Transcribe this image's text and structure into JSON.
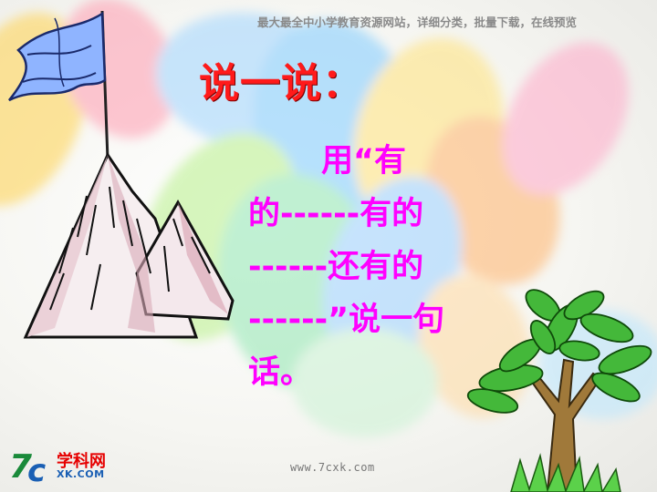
{
  "header": {
    "note": "最大最全中小学教育资源网站，详细分类，批量下载，在线预览"
  },
  "title": "说一说：",
  "body": {
    "lines": [
      "用“有",
      "的------有的",
      "------还有的",
      "------”说一句",
      "话。"
    ]
  },
  "footer": {
    "url": "www.7cxk.com"
  },
  "logo": {
    "mark": "7c",
    "cn": "学科网",
    "en": "XK.COM"
  },
  "icons": {
    "mountain": "mountain-flag-icon",
    "tree": "tree-icon"
  },
  "colors": {
    "title": "#ff1a1a",
    "body": "#ff00ff",
    "header_note": "#8a8a8a",
    "logo_red": "#e60000",
    "logo_blue": "#1a5fb4"
  }
}
